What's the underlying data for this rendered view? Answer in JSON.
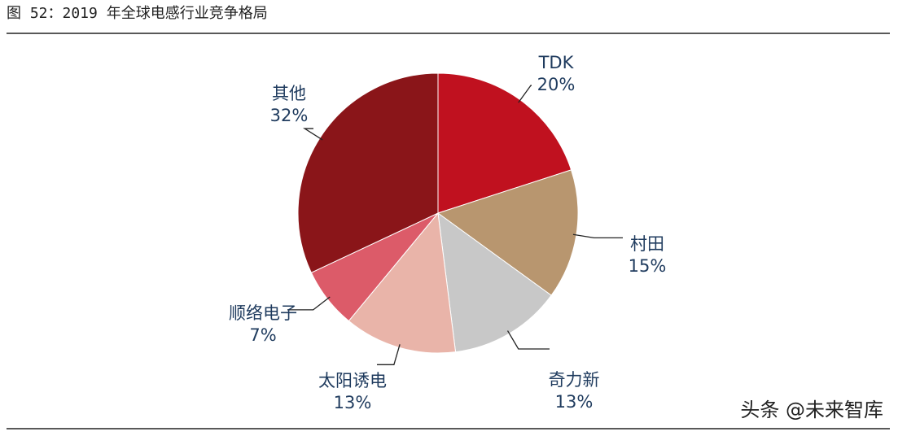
{
  "chart_data": {
    "type": "pie",
    "title": "图 52：2019 年全球电感行业竞争格局",
    "categories": [
      "TDK",
      "村田",
      "奇力新",
      "太阳诱电",
      "顺络电子",
      "其他"
    ],
    "values": [
      20,
      15,
      13,
      13,
      7,
      32
    ],
    "value_labels": [
      "20%",
      "15%",
      "13%",
      "13%",
      "7%",
      "32%"
    ],
    "colors": [
      "#c0111f",
      "#b8966f",
      "#c8c8c8",
      "#e9b4a9",
      "#dc5b69",
      "#8a1519"
    ],
    "watermark": "头条 @未来智库"
  }
}
